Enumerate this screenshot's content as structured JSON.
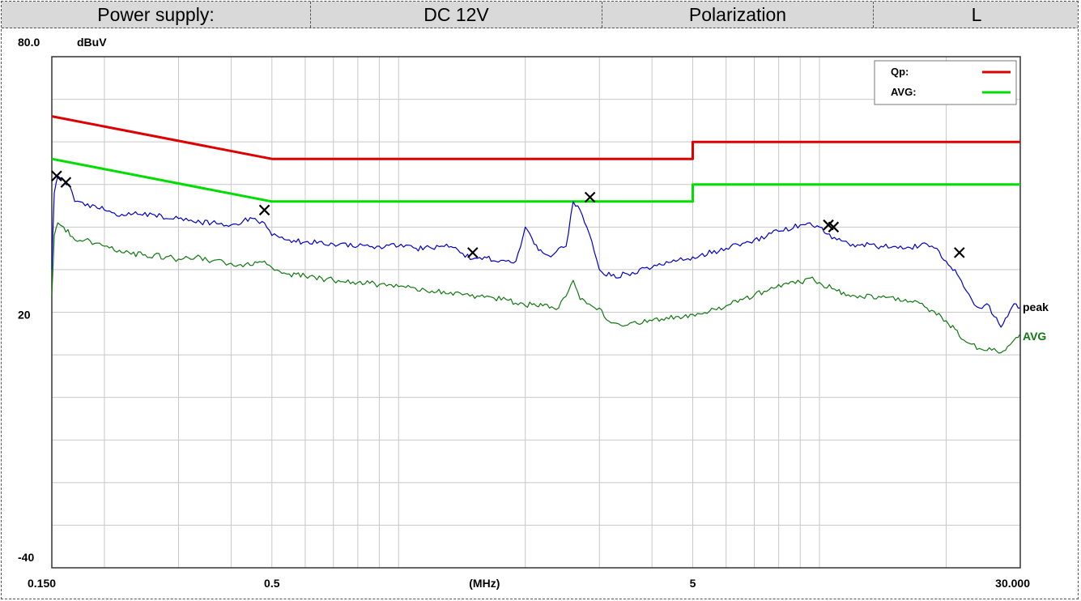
{
  "header": {
    "cells": [
      "Power supply:",
      "DC 12V",
      "Polarization",
      "L"
    ]
  },
  "chart_data": {
    "type": "line",
    "title": "",
    "xlabel": "(MHz)",
    "ylabel": "dBuV",
    "xscale": "log",
    "xlim": [
      0.15,
      30
    ],
    "ylim": [
      -40,
      80
    ],
    "grid": true,
    "legend_position": "top-right",
    "x_tick_labels": [
      {
        "x": 0.15,
        "label": "0.150"
      },
      {
        "x": 0.5,
        "label": "0.5"
      },
      {
        "x": 1.6,
        "label": "(MHz)"
      },
      {
        "x": 5,
        "label": "5"
      },
      {
        "x": 30,
        "label": "30.000"
      }
    ],
    "y_tick_labels": [
      {
        "y": 80,
        "label": "80.0"
      },
      {
        "y": 20,
        "label": "20"
      },
      {
        "y": -40,
        "label": "-40"
      }
    ],
    "y_unit_label": "dBuV",
    "legend": [
      {
        "label": "Qp:",
        "color": "#dd0000"
      },
      {
        "label": "AVG:",
        "color": "#00dd00"
      }
    ],
    "series": [
      {
        "name": "Qp:",
        "role": "limit",
        "color": "#dd0000",
        "x": [
          0.15,
          0.5,
          0.5,
          5,
          5,
          30
        ],
        "y": [
          66,
          56,
          56,
          56,
          60,
          60
        ]
      },
      {
        "name": "AVG:",
        "role": "limit",
        "color": "#00dd00",
        "x": [
          0.15,
          0.5,
          0.5,
          5,
          5,
          30
        ],
        "y": [
          56,
          46,
          46,
          46,
          50,
          50
        ]
      },
      {
        "name": "peak",
        "role": "measurement",
        "color": "#0000cc",
        "label_color": "#000000",
        "x": [
          0.15,
          0.152,
          0.155,
          0.16,
          0.165,
          0.17,
          0.18,
          0.19,
          0.2,
          0.22,
          0.24,
          0.26,
          0.28,
          0.3,
          0.33,
          0.36,
          0.4,
          0.45,
          0.48,
          0.5,
          0.55,
          0.6,
          0.7,
          0.8,
          0.9,
          1.0,
          1.1,
          1.2,
          1.3,
          1.4,
          1.5,
          1.6,
          1.7,
          1.8,
          1.9,
          2.0,
          2.1,
          2.2,
          2.3,
          2.4,
          2.5,
          2.6,
          2.7,
          2.8,
          3.0,
          3.2,
          3.5,
          4.0,
          5.0,
          6.0,
          7.0,
          8.0,
          9.0,
          9.5,
          10.0,
          11.0,
          12.0,
          14.0,
          16.0,
          18.0,
          19.0,
          20.0,
          21.0,
          22.0,
          23.0,
          24.0,
          25.0,
          26.0,
          27.0,
          28.0,
          29.0,
          30.0
        ],
        "y": [
          30,
          48,
          52,
          51,
          50,
          46,
          45,
          45,
          44,
          43,
          43,
          43,
          42,
          42,
          41,
          41,
          40.5,
          42,
          41,
          38,
          37,
          36.5,
          36,
          35.5,
          35.5,
          35.5,
          35,
          35,
          36,
          34,
          32.5,
          33,
          32,
          32,
          32,
          40,
          36,
          34,
          33,
          35,
          35.5,
          46,
          44,
          40,
          30,
          28.5,
          29,
          30.5,
          33,
          35,
          37,
          39,
          40.5,
          41,
          40,
          37,
          36,
          35.5,
          35,
          36,
          35,
          32,
          30,
          26,
          23,
          21,
          22,
          19,
          16.5,
          19,
          22,
          21
        ]
      },
      {
        "name": "AVG",
        "role": "measurement",
        "color": "#117711",
        "label_color": "#117711",
        "x": [
          0.15,
          0.152,
          0.155,
          0.16,
          0.17,
          0.18,
          0.2,
          0.22,
          0.25,
          0.28,
          0.3,
          0.33,
          0.36,
          0.4,
          0.45,
          0.48,
          0.5,
          0.55,
          0.6,
          0.7,
          0.8,
          0.9,
          1.0,
          1.2,
          1.4,
          1.6,
          1.8,
          2.0,
          2.1,
          2.2,
          2.4,
          2.6,
          2.7,
          2.8,
          3.0,
          3.2,
          3.5,
          4.0,
          5.0,
          6.0,
          7.0,
          8.0,
          9.0,
          9.5,
          10.0,
          11.0,
          12.0,
          14.0,
          16.0,
          18.0,
          20.0,
          21.0,
          22.0,
          23.0,
          24.0,
          25.0,
          26.0,
          27.0,
          28.0,
          29.0,
          30.0
        ],
        "y": [
          24,
          38,
          41,
          40,
          37,
          37,
          35.5,
          34,
          33.5,
          33,
          32.5,
          33,
          32,
          31.5,
          31,
          32,
          30.5,
          29,
          28.5,
          27.5,
          27,
          26.5,
          26,
          25,
          24.5,
          23.5,
          23,
          21.5,
          22,
          21.5,
          21,
          27.5,
          23,
          22,
          21,
          17.5,
          17,
          18,
          19.5,
          21.5,
          24,
          26.5,
          27,
          28,
          27,
          25,
          24,
          23.5,
          23,
          21,
          18,
          16,
          13.5,
          12.5,
          11.5,
          11,
          11.5,
          10.5,
          12,
          13.5,
          15
        ]
      }
    ],
    "markers": [
      {
        "x": 0.154,
        "y": 52
      },
      {
        "x": 0.162,
        "y": 50.5
      },
      {
        "x": 0.48,
        "y": 44
      },
      {
        "x": 1.5,
        "y": 34
      },
      {
        "x": 2.85,
        "y": 47
      },
      {
        "x": 10.5,
        "y": 40.5
      },
      {
        "x": 10.8,
        "y": 40
      },
      {
        "x": 21.5,
        "y": 34
      }
    ]
  }
}
